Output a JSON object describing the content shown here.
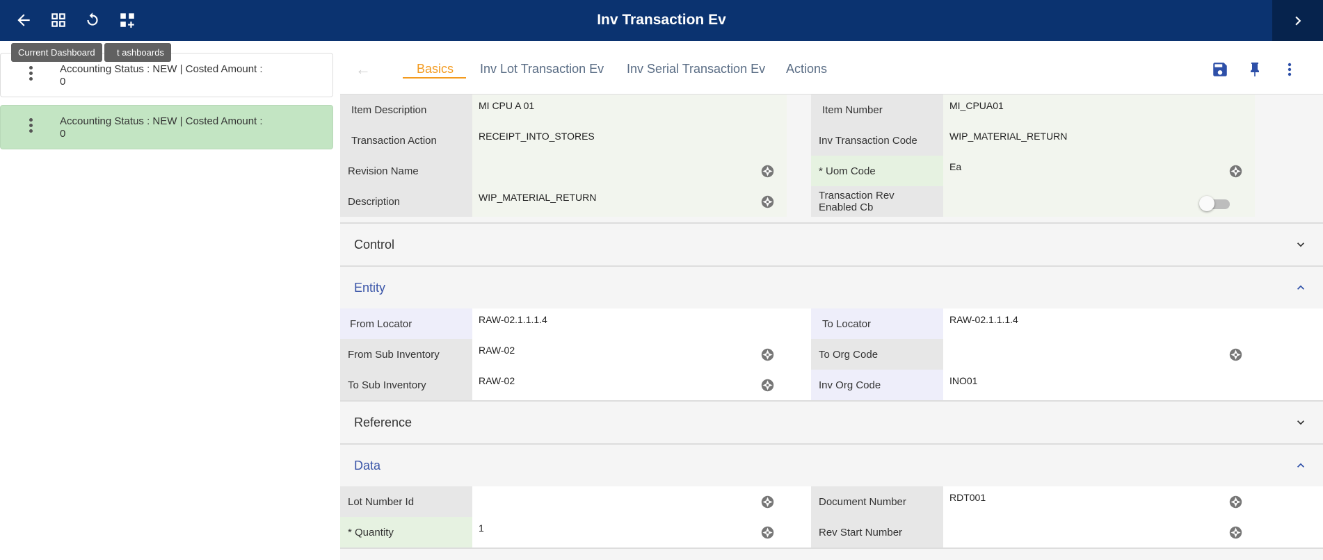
{
  "header": {
    "title": "Inv Transaction Ev",
    "tooltip": "Current Dashboard",
    "tooltip_behind": "t   ashboards"
  },
  "left_list": [
    {
      "line1": "Accounting Status  : NEW | Costed Amount  :",
      "line2": "0"
    },
    {
      "line1": "Accounting Status  : NEW | Costed Amount  :",
      "line2": "0"
    }
  ],
  "tabs": [
    "Basics",
    "Inv Lot Transaction Ev",
    "Inv Serial Transaction Ev",
    "Actions"
  ],
  "basics": {
    "item_description": {
      "label": "Item Description",
      "value": "MI CPU A 01"
    },
    "item_number": {
      "label": "Item Number",
      "value": "MI_CPUA01"
    },
    "transaction_action": {
      "label": "Transaction Action",
      "value": "RECEIPT_INTO_STORES"
    },
    "inv_transaction_code": {
      "label": "Inv Transaction Code",
      "value": "WIP_MATERIAL_RETURN"
    },
    "revision_name": {
      "label": "Revision Name",
      "value": ""
    },
    "uom_code": {
      "label": "* Uom Code",
      "value": "Ea"
    },
    "description": {
      "label": "Description",
      "value": "WIP_MATERIAL_RETURN"
    },
    "transaction_rev_enabled": {
      "label_1": "Transaction Rev",
      "label_2": "Enabled Cb",
      "checked": false
    }
  },
  "sections": {
    "control": "Control",
    "entity": "Entity",
    "reference": "Reference",
    "data": "Data"
  },
  "entity": {
    "from_locator": {
      "label": "From Locator",
      "value": "RAW-02.1.1.1.4"
    },
    "to_locator": {
      "label": "To Locator",
      "value": "RAW-02.1.1.1.4"
    },
    "from_sub_inventory": {
      "label": "From Sub Inventory",
      "value": "RAW-02"
    },
    "to_org_code": {
      "label": "To Org Code",
      "value": ""
    },
    "to_sub_inventory": {
      "label": "To Sub Inventory",
      "value": "RAW-02"
    },
    "inv_org_code": {
      "label": "Inv Org Code",
      "value": "INO01"
    }
  },
  "data_section": {
    "lot_number_id": {
      "label": "Lot Number Id",
      "value": ""
    },
    "document_number": {
      "label": "Document Number",
      "value": "RDT001"
    },
    "quantity": {
      "label": "* Quantity",
      "value": "1"
    },
    "rev_start_number": {
      "label": "Rev Start Number",
      "value": ""
    }
  },
  "colors": {
    "header_bg": "#0b3370",
    "accent_tab": "#f39a1e",
    "open_section": "#3a55a8",
    "selected_row": "#c3e5c3"
  }
}
